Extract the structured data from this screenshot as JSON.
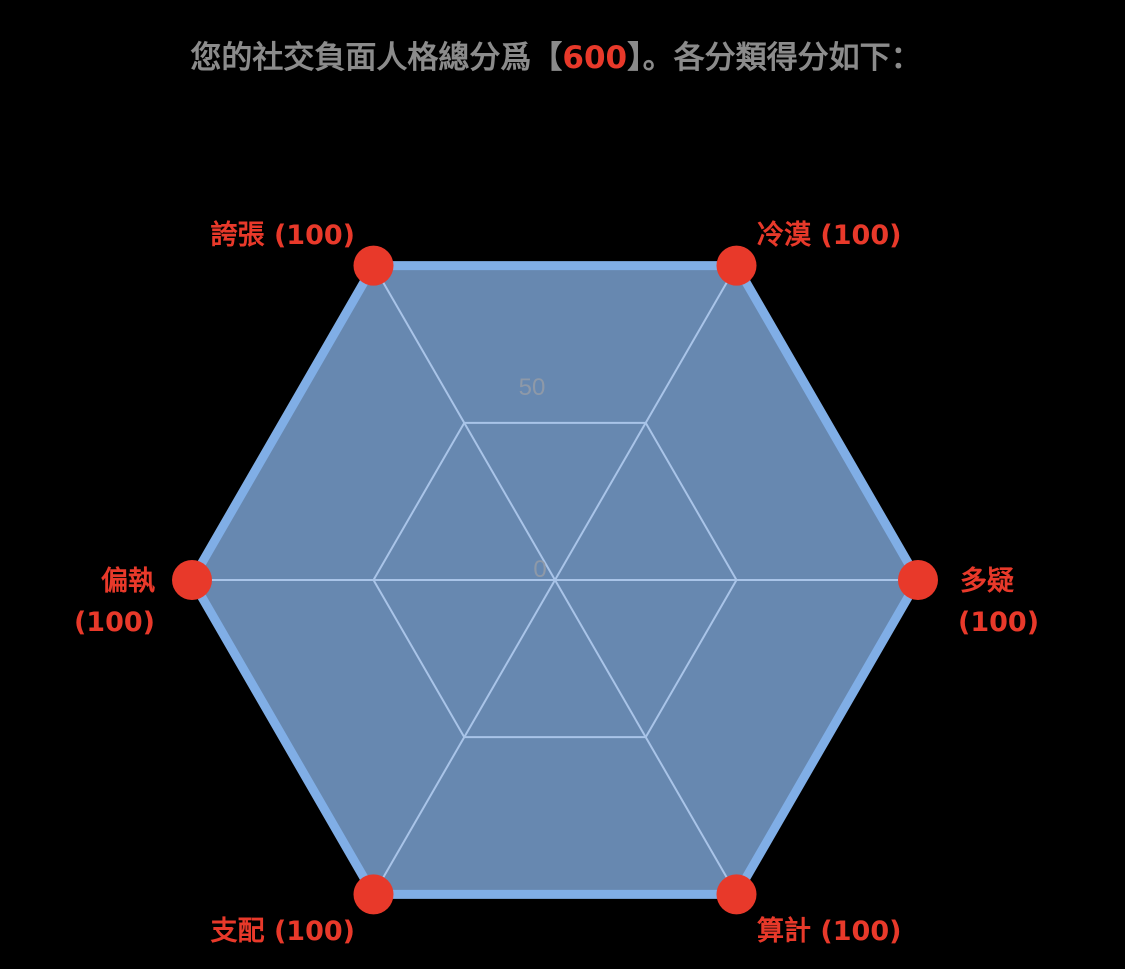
{
  "title": {
    "prefix": "您的社交負面人格總分爲【",
    "total": "600",
    "suffix": "】。各分類得分如下："
  },
  "chart_data": {
    "type": "radar",
    "categories": [
      "多疑",
      "冷漠",
      "誇張",
      "偏執",
      "支配",
      "算計"
    ],
    "values": [
      100,
      100,
      100,
      100,
      100,
      100
    ],
    "label_suffix": [
      "(100)",
      "(100)",
      "(100)",
      "(100)",
      "(100)",
      "(100)"
    ],
    "range": [
      0,
      100
    ],
    "ticks": [
      "0",
      "50"
    ],
    "grid": true,
    "colors": {
      "fill": "#6788b0",
      "stroke": "#80aee6",
      "grid": "#a9c4e8",
      "point": "#e8392a",
      "label": "#e8392a"
    }
  }
}
